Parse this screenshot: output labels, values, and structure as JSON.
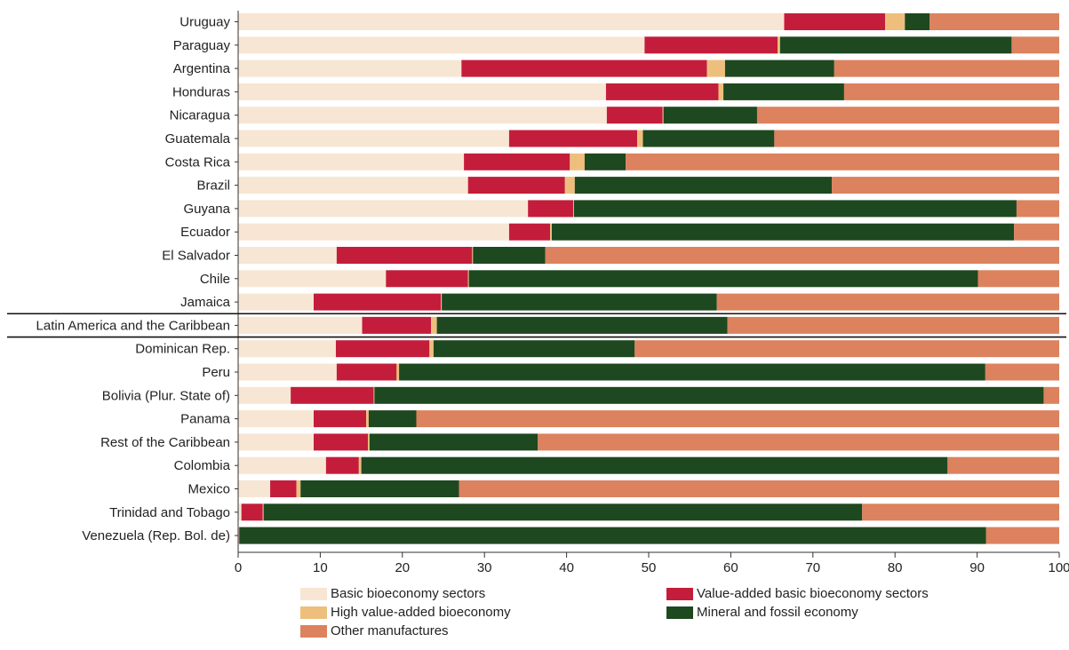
{
  "chart_data": {
    "type": "bar",
    "orientation": "horizontal",
    "stacked": true,
    "xlim": [
      0,
      100
    ],
    "xticks": [
      0,
      10,
      20,
      30,
      40,
      50,
      60,
      70,
      80,
      90,
      100
    ],
    "grid": false,
    "legend_position": "bottom",
    "categories": [
      "Uruguay",
      "Paraguay",
      "Argentina",
      "Honduras",
      "Nicaragua",
      "Guatemala",
      "Costa Rica",
      "Brazil",
      "Guyana",
      "Ecuador",
      "El Salvador",
      "Chile",
      "Jamaica",
      "Latin America and the Caribbean",
      "Dominican Rep.",
      "Peru",
      "Bolivia (Plur. State of)",
      "Panama",
      "Rest of the Caribbean",
      "Colombia",
      "Mexico",
      "Trinidad and Tobago",
      "Venezuela (Rep. Bol. de)"
    ],
    "separator_before_index": [
      13,
      14
    ],
    "series": [
      {
        "name": "Basic bioeconomy sectors",
        "color": "#f7e6d4",
        "values": [
          66.5,
          49.5,
          27.2,
          44.8,
          44.9,
          33.0,
          27.5,
          28.0,
          35.3,
          33.0,
          12.0,
          18.0,
          9.2,
          15.1,
          11.9,
          12.0,
          6.4,
          9.2,
          9.2,
          10.7,
          3.9,
          0.4,
          0.1
        ]
      },
      {
        "name": "Value-added basic bioeconomy sectors",
        "color": "#c41d3b",
        "values": [
          12.3,
          16.2,
          29.9,
          13.7,
          6.8,
          15.6,
          12.9,
          11.8,
          5.5,
          5.0,
          16.5,
          10.0,
          15.5,
          8.4,
          11.4,
          7.3,
          10.1,
          6.4,
          6.6,
          4.0,
          3.2,
          2.6,
          0.1
        ]
      },
      {
        "name": "High value-added bioeconomy",
        "color": "#eebf7c",
        "values": [
          2.4,
          0.3,
          2.2,
          0.6,
          0.1,
          0.7,
          1.8,
          1.2,
          0.1,
          0.2,
          0.1,
          0.1,
          0.1,
          0.7,
          0.5,
          0.3,
          0.1,
          0.3,
          0.2,
          0.3,
          0.5,
          0.1,
          0.0
        ]
      },
      {
        "name": "Mineral and fossil economy",
        "color": "#1e4820",
        "values": [
          3.0,
          28.2,
          13.3,
          14.7,
          11.4,
          16.0,
          5.0,
          31.3,
          53.9,
          56.3,
          8.8,
          62.0,
          33.5,
          35.4,
          24.5,
          71.4,
          81.5,
          5.8,
          20.5,
          71.4,
          19.3,
          72.9,
          90.9
        ]
      },
      {
        "name": "Other manufactures",
        "color": "#dc825e",
        "values": [
          15.8,
          5.8,
          27.4,
          26.2,
          36.8,
          34.7,
          52.8,
          27.7,
          5.2,
          5.5,
          62.6,
          9.9,
          41.7,
          40.4,
          51.7,
          9.0,
          1.9,
          78.3,
          63.5,
          13.6,
          73.1,
          24.0,
          8.9
        ]
      }
    ]
  }
}
